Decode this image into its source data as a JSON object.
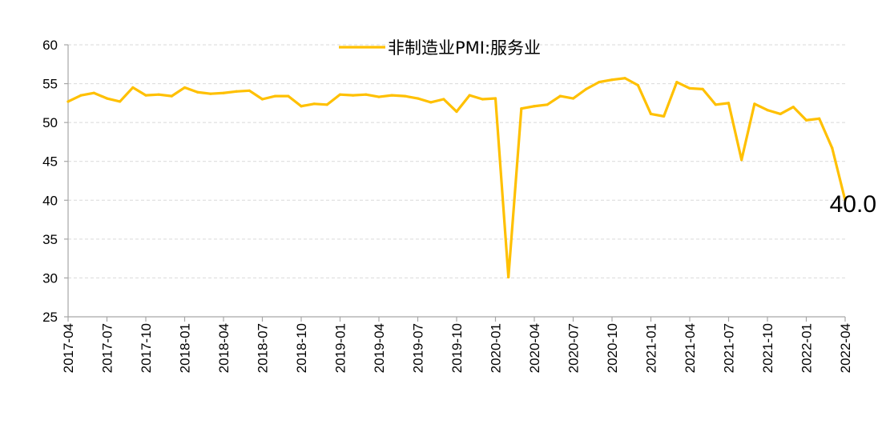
{
  "chart_data": {
    "type": "line",
    "title": "",
    "xlabel": "",
    "ylabel": "",
    "ylim": [
      25,
      60
    ],
    "yticks": [
      25,
      30,
      35,
      40,
      45,
      50,
      55,
      60
    ],
    "grid": "horizontal dashed",
    "legend": "top-center",
    "x_tick_labels": [
      "2017-04",
      "2017-07",
      "2017-10",
      "2018-01",
      "2018-04",
      "2018-07",
      "2018-10",
      "2019-01",
      "2019-04",
      "2019-07",
      "2019-10",
      "2020-01",
      "2020-04",
      "2020-07",
      "2020-10",
      "2021-01",
      "2021-04",
      "2021-07",
      "2021-10",
      "2022-01",
      "2022-04"
    ],
    "series": [
      {
        "name": "非制造业PMI:服务业",
        "color": "#FFC000",
        "x": [
          "2017-04",
          "2017-05",
          "2017-06",
          "2017-07",
          "2017-08",
          "2017-09",
          "2017-10",
          "2017-11",
          "2017-12",
          "2018-01",
          "2018-02",
          "2018-03",
          "2018-04",
          "2018-05",
          "2018-06",
          "2018-07",
          "2018-08",
          "2018-09",
          "2018-10",
          "2018-11",
          "2018-12",
          "2019-01",
          "2019-02",
          "2019-03",
          "2019-04",
          "2019-05",
          "2019-06",
          "2019-07",
          "2019-08",
          "2019-09",
          "2019-10",
          "2019-11",
          "2019-12",
          "2020-01",
          "2020-02",
          "2020-03",
          "2020-04",
          "2020-05",
          "2020-06",
          "2020-07",
          "2020-08",
          "2020-09",
          "2020-10",
          "2020-11",
          "2020-12",
          "2021-01",
          "2021-02",
          "2021-03",
          "2021-04",
          "2021-05",
          "2021-06",
          "2021-07",
          "2021-08",
          "2021-09",
          "2021-10",
          "2021-11",
          "2021-12",
          "2022-01",
          "2022-02",
          "2022-03",
          "2022-04"
        ],
        "values": [
          52.7,
          53.5,
          53.8,
          53.1,
          52.7,
          54.5,
          53.5,
          53.6,
          53.4,
          54.5,
          53.9,
          53.7,
          53.8,
          54.0,
          54.1,
          53.0,
          53.4,
          53.4,
          52.1,
          52.4,
          52.3,
          53.6,
          53.5,
          53.6,
          53.3,
          53.5,
          53.4,
          53.1,
          52.6,
          53.0,
          51.4,
          53.5,
          53.0,
          53.1,
          30.1,
          51.8,
          52.1,
          52.3,
          53.4,
          53.1,
          54.3,
          55.2,
          55.5,
          55.7,
          54.8,
          51.1,
          50.8,
          55.2,
          54.4,
          54.3,
          52.3,
          52.5,
          45.2,
          52.4,
          51.6,
          51.1,
          52.0,
          50.3,
          50.5,
          46.7,
          40.0
        ]
      }
    ],
    "end_label": "40.0"
  }
}
